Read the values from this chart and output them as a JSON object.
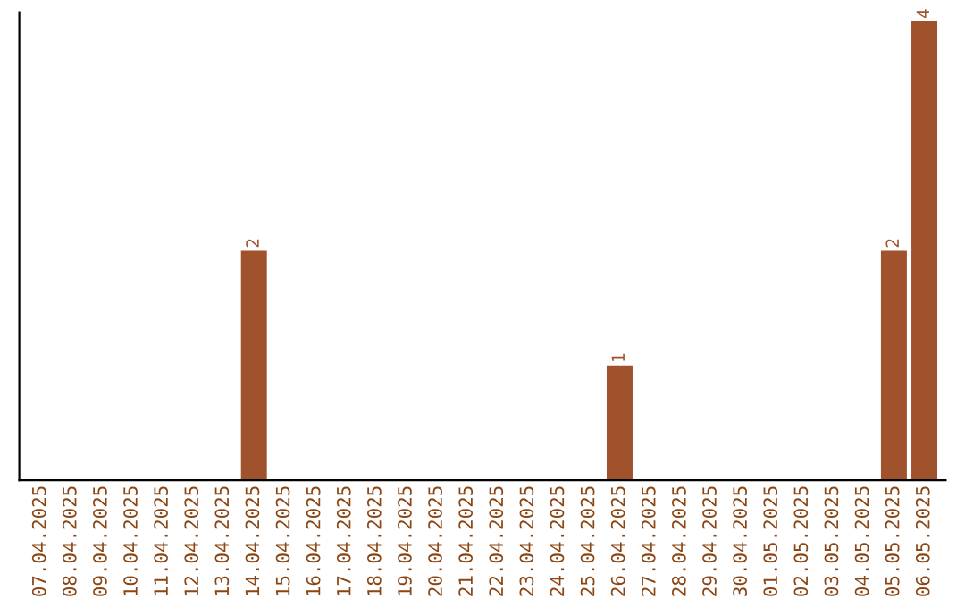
{
  "chart_data": {
    "type": "bar",
    "categories": [
      "07.04.2025",
      "08.04.2025",
      "09.04.2025",
      "10.04.2025",
      "11.04.2025",
      "12.04.2025",
      "13.04.2025",
      "14.04.2025",
      "15.04.2025",
      "16.04.2025",
      "17.04.2025",
      "18.04.2025",
      "19.04.2025",
      "20.04.2025",
      "21.04.2025",
      "22.04.2025",
      "23.04.2025",
      "24.04.2025",
      "25.04.2025",
      "26.04.2025",
      "27.04.2025",
      "28.04.2025",
      "29.04.2025",
      "30.04.2025",
      "01.05.2025",
      "02.05.2025",
      "03.05.2025",
      "04.05.2025",
      "05.05.2025",
      "06.05.2025"
    ],
    "values": [
      0,
      0,
      0,
      0,
      0,
      0,
      0,
      2,
      0,
      0,
      0,
      0,
      0,
      0,
      0,
      0,
      0,
      0,
      0,
      1,
      0,
      0,
      0,
      0,
      0,
      0,
      0,
      0,
      2,
      4
    ],
    "value_labels": [
      null,
      null,
      null,
      null,
      null,
      null,
      null,
      "2",
      null,
      null,
      null,
      null,
      null,
      null,
      null,
      null,
      null,
      null,
      null,
      "1",
      null,
      null,
      null,
      null,
      null,
      null,
      null,
      null,
      "2",
      "4"
    ],
    "color": "#a0522d",
    "grid": false,
    "tick_labels": "x"
  }
}
